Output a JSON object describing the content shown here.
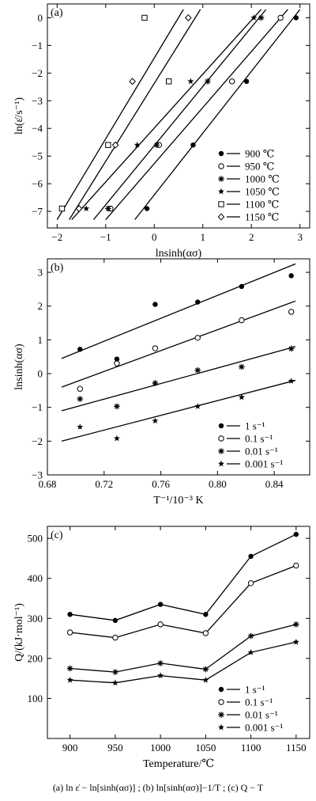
{
  "caption": "(a)    ln ε̇ − ln[sinh(ασ)]  ;  (b) ln[sinh(ασ)]−1/T ; (c)  Q − T",
  "chart_data": [
    {
      "panel": "(a)",
      "type": "scatter",
      "xlabel": "lnsinh(ασ)",
      "ylabel": "ln(ε̇/s⁻¹)",
      "xlim": [
        -2.2,
        3.2
      ],
      "ylim": [
        -7.6,
        0.5
      ],
      "xticks": [
        -2,
        -1,
        0,
        1,
        2,
        3
      ],
      "yticks": [
        -7,
        -6,
        -5,
        -4,
        -3,
        -2,
        -1,
        0
      ],
      "legend_position": "bottom-right",
      "series": [
        {
          "name": "900 ℃",
          "marker": "filled-circle",
          "x": [
            -0.15,
            0.8,
            1.9,
            2.92
          ],
          "y": [
            -6.9,
            -4.6,
            -2.3,
            0
          ],
          "fit": [
            [
              -0.4,
              -7.3
            ],
            [
              3.0,
              0.3
            ]
          ]
        },
        {
          "name": "950 ℃",
          "marker": "open-circle",
          "x": [
            -0.9,
            0.1,
            1.6,
            2.6
          ],
          "y": [
            -6.9,
            -4.6,
            -2.3,
            0
          ],
          "fit": [
            [
              -1.0,
              -7.3
            ],
            [
              2.75,
              0.3
            ]
          ]
        },
        {
          "name": "1000 ℃",
          "marker": "asterisk",
          "x": [
            -0.95,
            0.05,
            1.1,
            2.2
          ],
          "y": [
            -6.9,
            -4.6,
            -2.3,
            0
          ],
          "fit": [
            [
              -1.25,
              -7.3
            ],
            [
              2.3,
              0.3
            ]
          ]
        },
        {
          "name": "1050 ℃",
          "marker": "star",
          "x": [
            -1.4,
            -0.35,
            0.75,
            2.05
          ],
          "y": [
            -6.9,
            -4.6,
            -2.3,
            0
          ],
          "fit": [
            [
              -1.7,
              -7.3
            ],
            [
              2.2,
              0.3
            ]
          ]
        },
        {
          "name": "1100 ℃",
          "marker": "open-square",
          "x": [
            -1.9,
            -0.95,
            0.3,
            -0.2
          ],
          "y": [
            -6.9,
            -4.6,
            -2.3,
            0
          ],
          "fit": [
            [
              -2.0,
              -7.3
            ],
            [
              0.6,
              0.3
            ]
          ]
        },
        {
          "name": "1150 ℃",
          "marker": "open-diamond",
          "x": [
            -1.55,
            -0.8,
            -0.45,
            0.7
          ],
          "y": [
            -6.9,
            -4.6,
            -2.3,
            0
          ],
          "fit": [
            [
              -1.75,
              -7.3
            ],
            [
              0.95,
              0.3
            ]
          ]
        }
      ]
    },
    {
      "panel": "(b)",
      "type": "scatter",
      "xlabel": "T⁻¹/10⁻³ K",
      "ylabel": "lnsinh(ασ)",
      "xlim": [
        0.68,
        0.865
      ],
      "ylim": [
        -3,
        3.4
      ],
      "xticks": [
        0.68,
        0.72,
        0.76,
        0.8,
        0.84
      ],
      "xticklabels": [
        "0.68",
        "0.72",
        "0.76",
        "0.80",
        "0.84"
      ],
      "yticks": [
        -3,
        -2,
        -1,
        0,
        1,
        2,
        3
      ],
      "legend_position": "bottom-right",
      "x": [
        0.703,
        0.729,
        0.756,
        0.786,
        0.817,
        0.852
      ],
      "series": [
        {
          "name": "1 s⁻¹",
          "marker": "filled-circle",
          "values": [
            0.72,
            0.43,
            2.05,
            2.12,
            2.58,
            2.9
          ],
          "fit": [
            [
              0.69,
              0.45
            ],
            [
              0.855,
              3.25
            ]
          ]
        },
        {
          "name": "0.1 s⁻¹",
          "marker": "open-circle",
          "values": [
            -0.45,
            0.3,
            0.75,
            1.06,
            1.58,
            1.83
          ],
          "fit": [
            [
              0.69,
              -0.4
            ],
            [
              0.855,
              2.15
            ]
          ]
        },
        {
          "name": "0.01 s⁻¹",
          "marker": "asterisk",
          "values": [
            -0.75,
            -0.97,
            -0.28,
            0.1,
            0.2,
            0.74
          ],
          "fit": [
            [
              0.69,
              -1.1
            ],
            [
              0.855,
              0.8
            ]
          ]
        },
        {
          "name": "0.001 s⁻¹",
          "marker": "star",
          "values": [
            -1.58,
            -1.92,
            -1.4,
            -0.97,
            -0.7,
            -0.22
          ],
          "fit": [
            [
              0.69,
              -2.0
            ],
            [
              0.855,
              -0.2
            ]
          ]
        }
      ]
    },
    {
      "panel": "(c)",
      "type": "line",
      "xlabel": "Temperature/℃",
      "ylabel": "Q/(kJ·mol⁻¹)",
      "xlim": [
        875,
        1165
      ],
      "ylim": [
        0,
        530
      ],
      "xticks": [
        900,
        950,
        1000,
        1050,
        1100,
        1150
      ],
      "yticks": [
        100,
        200,
        300,
        400,
        500
      ],
      "legend_position": "bottom-right",
      "x": [
        900,
        950,
        1000,
        1050,
        1100,
        1150
      ],
      "series": [
        {
          "name": "1 s⁻¹",
          "marker": "filled-circle",
          "values": [
            310,
            295,
            335,
            310,
            455,
            510
          ]
        },
        {
          "name": "0.1 s⁻¹",
          "marker": "open-circle",
          "values": [
            265,
            252,
            285,
            263,
            388,
            432
          ]
        },
        {
          "name": "0.01 s⁻¹",
          "marker": "asterisk",
          "values": [
            175,
            166,
            188,
            173,
            256,
            285
          ]
        },
        {
          "name": "0.001 s⁻¹",
          "marker": "star",
          "values": [
            146,
            139,
            157,
            146,
            215,
            241
          ]
        }
      ]
    }
  ]
}
